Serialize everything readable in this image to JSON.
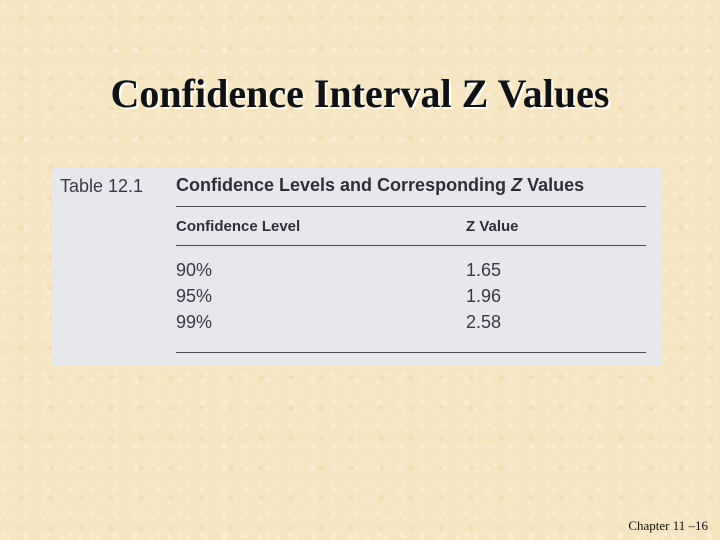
{
  "slide": {
    "title": "Confidence Interval Z Values",
    "footer": "Chapter 11 –16"
  },
  "table": {
    "number": "Table 12.1",
    "caption_prefix": "Confidence Levels and Corresponding ",
    "caption_emphasis": "Z",
    "caption_suffix": " Values",
    "columns": [
      "Confidence Level",
      "Z Value"
    ],
    "rows": [
      {
        "level": "90%",
        "z": "1.65"
      },
      {
        "level": "95%",
        "z": "1.96"
      },
      {
        "level": "99%",
        "z": "2.58"
      }
    ]
  }
}
